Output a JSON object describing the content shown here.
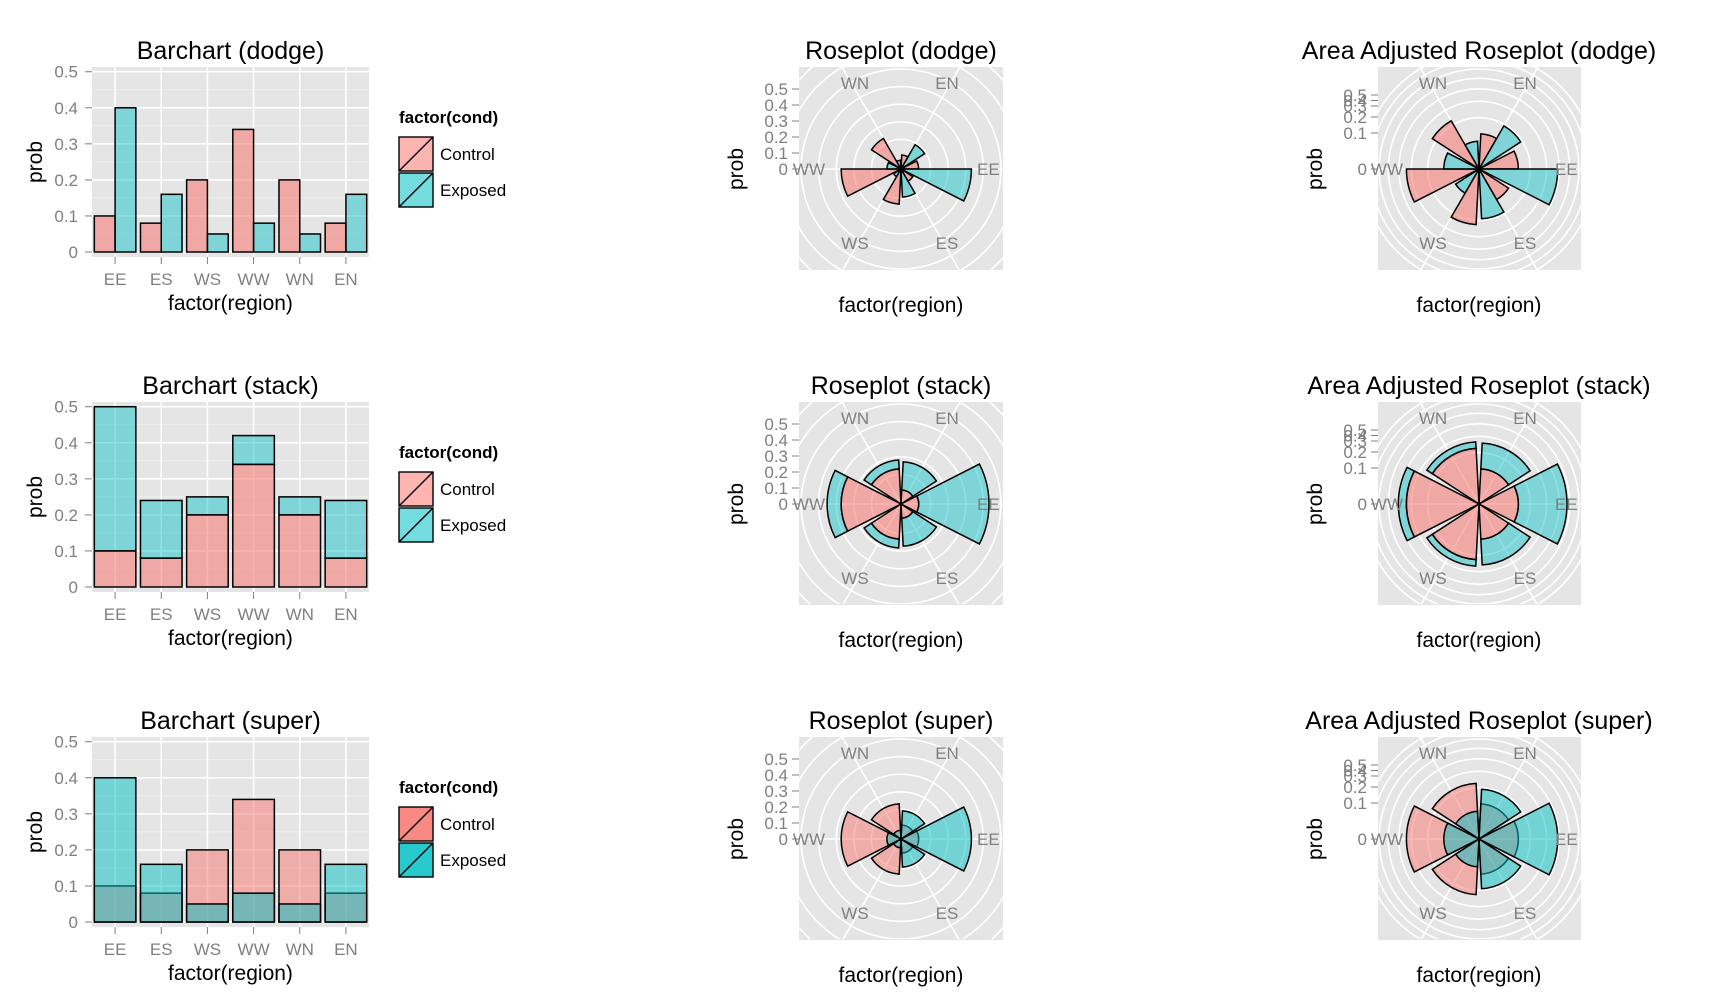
{
  "figure": {
    "shared": {
      "regions": [
        "EE",
        "ES",
        "WS",
        "WW",
        "WN",
        "EN"
      ],
      "compass_labels": [
        "WN",
        "EN",
        "WW",
        "EE",
        "WS",
        "ES"
      ],
      "x_axis_label": "factor(region)",
      "y_axis_label": "prob",
      "legend_title": "factor(cond)",
      "legend_labels": [
        "Control",
        "Exposed"
      ],
      "colors": {
        "control": "#f8766d",
        "exposed": "#00bfc4",
        "panel_bg": "#e5e5e5",
        "grid": "#ffffff",
        "outline": "#000000"
      }
    }
  },
  "chart_data": [
    {
      "title": "Barchart (dodge)",
      "type": "bar",
      "position": "dodge",
      "categories": [
        "EE",
        "ES",
        "WS",
        "WW",
        "WN",
        "EN"
      ],
      "series": [
        {
          "name": "Control",
          "values": [
            0.1,
            0.08,
            0.2,
            0.34,
            0.2,
            0.08
          ]
        },
        {
          "name": "Exposed",
          "values": [
            0.4,
            0.16,
            0.05,
            0.08,
            0.05,
            0.16
          ]
        }
      ],
      "xlabel": "factor(region)",
      "ylabel": "prob",
      "ylim": [
        0,
        0.5
      ],
      "yticks": [
        "0",
        "0.1",
        "0.2",
        "0.3",
        "0.4",
        "0.5"
      ],
      "grid": true,
      "legend": "right"
    },
    {
      "title": "Roseplot (dodge)",
      "type": "rose",
      "position": "dodge",
      "categories": [
        "EE",
        "ES",
        "WS",
        "WW",
        "WN",
        "EN"
      ],
      "series": [
        {
          "name": "Control",
          "values": [
            0.1,
            0.08,
            0.2,
            0.34,
            0.2,
            0.08
          ]
        },
        {
          "name": "Exposed",
          "values": [
            0.4,
            0.16,
            0.05,
            0.08,
            0.05,
            0.16
          ]
        }
      ],
      "xlabel": "factor(region)",
      "ylabel": "prob",
      "rticks": [
        "0",
        "0.1",
        "0.2",
        "0.3",
        "0.4",
        "0.5"
      ],
      "grid": true
    },
    {
      "title": "Area Adjusted Roseplot (dodge)",
      "type": "rose",
      "scale": "sqrt",
      "position": "dodge",
      "categories": [
        "EE",
        "ES",
        "WS",
        "WW",
        "WN",
        "EN"
      ],
      "series": [
        {
          "name": "Control",
          "values": [
            0.1,
            0.08,
            0.2,
            0.34,
            0.2,
            0.08
          ]
        },
        {
          "name": "Exposed",
          "values": [
            0.4,
            0.16,
            0.05,
            0.08,
            0.05,
            0.16
          ]
        }
      ],
      "xlabel": "factor(region)",
      "ylabel": "prob",
      "rticks": [
        "0",
        "0.1",
        "0.2",
        "0.3",
        "0.4",
        "0.5"
      ],
      "grid": true
    },
    {
      "title": "Barchart (stack)",
      "type": "bar",
      "position": "stack",
      "categories": [
        "EE",
        "ES",
        "WS",
        "WW",
        "WN",
        "EN"
      ],
      "series": [
        {
          "name": "Control",
          "values": [
            0.1,
            0.08,
            0.2,
            0.34,
            0.2,
            0.08
          ]
        },
        {
          "name": "Exposed",
          "values": [
            0.4,
            0.16,
            0.05,
            0.08,
            0.05,
            0.16
          ]
        }
      ],
      "xlabel": "factor(region)",
      "ylabel": "prob",
      "ylim": [
        0,
        0.5
      ],
      "yticks": [
        "0",
        "0.1",
        "0.2",
        "0.3",
        "0.4",
        "0.5"
      ],
      "grid": true,
      "legend": "right"
    },
    {
      "title": "Roseplot (stack)",
      "type": "rose",
      "position": "stack",
      "categories": [
        "EE",
        "ES",
        "WS",
        "WW",
        "WN",
        "EN"
      ],
      "series": [
        {
          "name": "Control",
          "values": [
            0.1,
            0.08,
            0.2,
            0.34,
            0.2,
            0.08
          ]
        },
        {
          "name": "Exposed",
          "values": [
            0.4,
            0.16,
            0.05,
            0.08,
            0.05,
            0.16
          ]
        }
      ],
      "xlabel": "factor(region)",
      "ylabel": "prob",
      "rticks": [
        "0",
        "0.1",
        "0.2",
        "0.3",
        "0.4",
        "0.5"
      ],
      "grid": true
    },
    {
      "title": "Area Adjusted Roseplot (stack)",
      "type": "rose",
      "scale": "sqrt",
      "position": "stack",
      "categories": [
        "EE",
        "ES",
        "WS",
        "WW",
        "WN",
        "EN"
      ],
      "series": [
        {
          "name": "Control",
          "values": [
            0.1,
            0.08,
            0.2,
            0.34,
            0.2,
            0.08
          ]
        },
        {
          "name": "Exposed",
          "values": [
            0.4,
            0.16,
            0.05,
            0.08,
            0.05,
            0.16
          ]
        }
      ],
      "xlabel": "factor(region)",
      "ylabel": "prob",
      "rticks": [
        "0",
        "0.1",
        "0.2",
        "0.3",
        "0.4",
        "0.5"
      ],
      "grid": true
    },
    {
      "title": "Barchart (super)",
      "type": "bar",
      "position": "identity",
      "alpha": 0.5,
      "categories": [
        "EE",
        "ES",
        "WS",
        "WW",
        "WN",
        "EN"
      ],
      "series": [
        {
          "name": "Control",
          "values": [
            0.1,
            0.08,
            0.2,
            0.34,
            0.2,
            0.08
          ]
        },
        {
          "name": "Exposed",
          "values": [
            0.4,
            0.16,
            0.05,
            0.08,
            0.05,
            0.16
          ]
        }
      ],
      "xlabel": "factor(region)",
      "ylabel": "prob",
      "ylim": [
        0,
        0.5
      ],
      "yticks": [
        "0",
        "0.1",
        "0.2",
        "0.3",
        "0.4",
        "0.5"
      ],
      "grid": true,
      "legend": "right"
    },
    {
      "title": "Roseplot (super)",
      "type": "rose",
      "position": "identity",
      "alpha": 0.5,
      "categories": [
        "EE",
        "ES",
        "WS",
        "WW",
        "WN",
        "EN"
      ],
      "series": [
        {
          "name": "Control",
          "values": [
            0.1,
            0.08,
            0.2,
            0.34,
            0.2,
            0.08
          ]
        },
        {
          "name": "Exposed",
          "values": [
            0.4,
            0.16,
            0.05,
            0.08,
            0.05,
            0.16
          ]
        }
      ],
      "xlabel": "factor(region)",
      "ylabel": "prob",
      "rticks": [
        "0",
        "0.1",
        "0.2",
        "0.3",
        "0.4",
        "0.5"
      ],
      "grid": true
    },
    {
      "title": "Area Adjusted Roseplot (super)",
      "type": "rose",
      "scale": "sqrt",
      "position": "identity",
      "alpha": 0.5,
      "categories": [
        "EE",
        "ES",
        "WS",
        "WW",
        "WN",
        "EN"
      ],
      "series": [
        {
          "name": "Control",
          "values": [
            0.1,
            0.08,
            0.2,
            0.34,
            0.2,
            0.08
          ]
        },
        {
          "name": "Exposed",
          "values": [
            0.4,
            0.16,
            0.05,
            0.08,
            0.05,
            0.16
          ]
        }
      ],
      "xlabel": "factor(region)",
      "ylabel": "prob",
      "rticks": [
        "0",
        "0.1",
        "0.2",
        "0.3",
        "0.4",
        "0.5"
      ],
      "grid": true
    }
  ]
}
